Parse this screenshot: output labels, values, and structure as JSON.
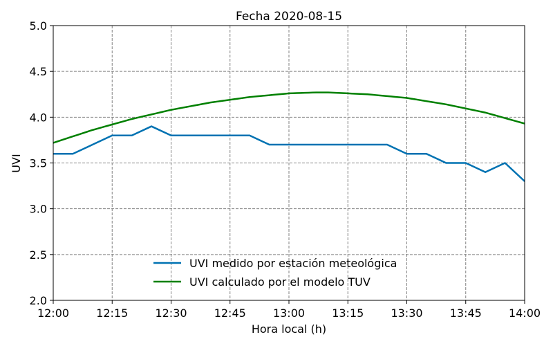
{
  "chart_data": {
    "type": "line",
    "title": "Fecha 2020-08-15",
    "xlabel": "Hora local (h)",
    "ylabel": "UVI",
    "xlim": [
      "12:00",
      "14:00"
    ],
    "ylim": [
      2.0,
      5.0
    ],
    "grid": true,
    "legend_position": "lower-center",
    "x_ticks": [
      "12:00",
      "12:15",
      "12:30",
      "12:45",
      "13:00",
      "13:15",
      "13:30",
      "13:45",
      "14:00"
    ],
    "y_ticks": [
      "2.0",
      "2.5",
      "3.0",
      "3.5",
      "4.0",
      "4.5",
      "5.0"
    ],
    "series": [
      {
        "name": "UVI medido por estación meteológica",
        "color": "#0072b2",
        "x": [
          "12:00",
          "12:05",
          "12:10",
          "12:15",
          "12:20",
          "12:25",
          "12:30",
          "12:35",
          "12:40",
          "12:45",
          "12:50",
          "12:55",
          "13:00",
          "13:05",
          "13:10",
          "13:15",
          "13:20",
          "13:25",
          "13:30",
          "13:35",
          "13:40",
          "13:45",
          "13:50",
          "13:55",
          "14:00"
        ],
        "values": [
          3.6,
          3.6,
          3.7,
          3.8,
          3.8,
          3.9,
          3.8,
          3.8,
          3.8,
          3.8,
          3.8,
          3.7,
          3.7,
          3.7,
          3.7,
          3.7,
          3.7,
          3.7,
          3.6,
          3.6,
          3.5,
          3.5,
          3.4,
          3.5,
          3.3
        ]
      },
      {
        "name": "UVI calculado por el modelo TUV",
        "color": "#008000",
        "x": [
          "12:00",
          "12:10",
          "12:20",
          "12:30",
          "12:40",
          "12:50",
          "13:00",
          "13:07",
          "13:10",
          "13:20",
          "13:30",
          "13:40",
          "13:50",
          "14:00"
        ],
        "values": [
          3.72,
          3.86,
          3.98,
          4.08,
          4.16,
          4.22,
          4.26,
          4.27,
          4.27,
          4.25,
          4.21,
          4.14,
          4.05,
          3.93
        ]
      }
    ]
  }
}
